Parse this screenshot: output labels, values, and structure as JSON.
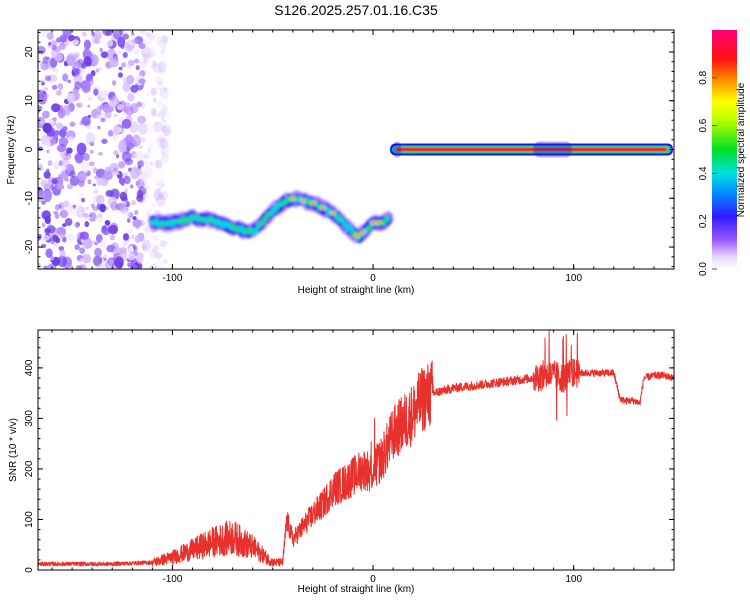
{
  "figure": {
    "title": "S126.2025.257.01.16.C35"
  },
  "chart_data": [
    {
      "type": "heatmap",
      "title": "S126.2025.257.01.16.C35",
      "xlabel": "Height of straight line (km)",
      "ylabel": "Frequency (Hz)",
      "xlim": [
        -167,
        150
      ],
      "ylim": [
        -24.5,
        24.5
      ],
      "xticks": [
        -100,
        0,
        100
      ],
      "yticks": [
        -20,
        -10,
        0,
        10,
        20
      ],
      "colorbar": {
        "label": "Normalized spectral amplitude",
        "range": [
          0,
          1
        ],
        "ticks": [
          0.0,
          0.2,
          0.4,
          0.6,
          0.8
        ],
        "colormap": "rainbow (white-violet-blue-cyan-green-yellow-red-magenta)"
      },
      "features": {
        "noise_region_x": [
          -167,
          -105
        ],
        "trace": {
          "x": [
            -110,
            -100,
            -90,
            -80,
            -70,
            -60,
            -50,
            -45,
            -40,
            -35,
            -30,
            -25,
            -20,
            -15,
            -10,
            -7,
            -5,
            0,
            5,
            8
          ],
          "y": [
            -15,
            -15,
            -14,
            -14.5,
            -16,
            -17,
            -12.5,
            -11,
            -10,
            -10.5,
            -11,
            -12,
            -13,
            -15,
            -17,
            -18,
            -17,
            -15,
            -15,
            -14
          ]
        },
        "carrier": {
          "x_start": 10,
          "x_end": 148,
          "frequency": 0
        }
      }
    },
    {
      "type": "line",
      "title": "",
      "xlabel": "Height of straight line (km)",
      "ylabel": "SNR (10 * v/v)",
      "xlim": [
        -167,
        150
      ],
      "ylim": [
        0,
        475
      ],
      "xticks": [
        -100,
        0,
        100
      ],
      "yticks": [
        0,
        100,
        200,
        300,
        400
      ],
      "series": [
        {
          "name": "SNR",
          "color": "#e8302c",
          "x": [
            -167,
            -150,
            -130,
            -110,
            -100,
            -90,
            -80,
            -70,
            -60,
            -55,
            -50,
            -45,
            -43,
            -40,
            -38,
            -35,
            -30,
            -25,
            -20,
            -15,
            -10,
            -5,
            0,
            5,
            10,
            15,
            20,
            25,
            30,
            40,
            50,
            60,
            70,
            80,
            85,
            90,
            95,
            100,
            105,
            110,
            115,
            120,
            123,
            125,
            130,
            133,
            135,
            140,
            145,
            150
          ],
          "y": [
            12,
            12,
            12,
            15,
            25,
            40,
            55,
            65,
            45,
            30,
            15,
            15,
            100,
            60,
            70,
            85,
            110,
            130,
            160,
            170,
            185,
            200,
            195,
            225,
            270,
            290,
            310,
            340,
            350,
            360,
            365,
            370,
            375,
            380,
            385,
            385,
            380,
            390,
            390,
            390,
            390,
            390,
            340,
            335,
            335,
            330,
            380,
            385,
            385,
            380
          ]
        }
      ]
    }
  ]
}
